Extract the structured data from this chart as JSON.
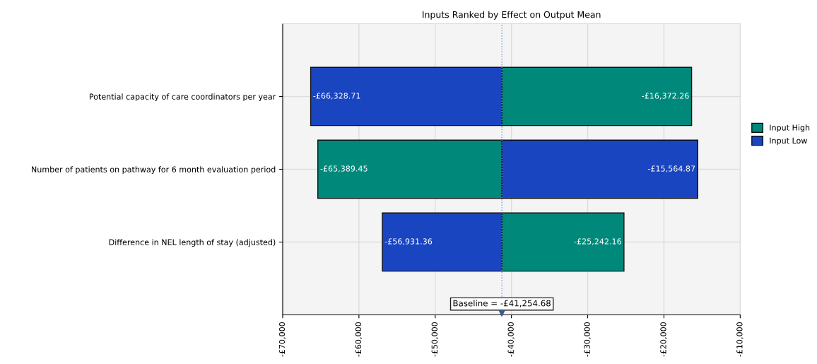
{
  "chart_data": {
    "type": "bar",
    "orientation": "horizontal",
    "title": "Inputs Ranked by Effect on Output Mean",
    "categories": [
      "Potential capacity of care coordinators per year",
      "Number of patients on pathway for 6 month evaluation period",
      "Difference in NEL length of stay (adjusted)"
    ],
    "series": [
      {
        "name": "Input High",
        "color": "#00897b",
        "base": [
          -41254.68,
          -41254.68,
          -41254.68
        ],
        "values": [
          24882.42,
          -24134.77,
          16012.52
        ],
        "value_labels": [
          "-£16,372.26",
          "-£65,389.45",
          "-£25,242.16"
        ]
      },
      {
        "name": "Input Low",
        "color": "#1a45c0",
        "base": [
          -41254.68,
          -41254.68,
          -41254.68
        ],
        "values": [
          -25074.03,
          25689.81,
          -15676.68
        ],
        "value_labels": [
          "-£66,328.71",
          "-£15,564.87",
          "-£56,931.36"
        ]
      }
    ],
    "xlim": [
      -70000,
      -10000
    ],
    "xticks": [
      {
        "value": -70000,
        "label": "-£70,000"
      },
      {
        "value": -60000,
        "label": "-£60,000"
      },
      {
        "value": -50000,
        "label": "-£50,000"
      },
      {
        "value": -40000,
        "label": "-£40,000"
      },
      {
        "value": -30000,
        "label": "-£30,000"
      },
      {
        "value": -20000,
        "label": "-£20,000"
      },
      {
        "value": -10000,
        "label": "-£10,000"
      }
    ],
    "ref_lines": [
      {
        "axis": "x",
        "value": -41254.68,
        "label": "Baseline = -£41,254.68",
        "color": "#6f9bf0",
        "line_style": "dotted"
      }
    ],
    "grid": true,
    "legend": "right"
  }
}
